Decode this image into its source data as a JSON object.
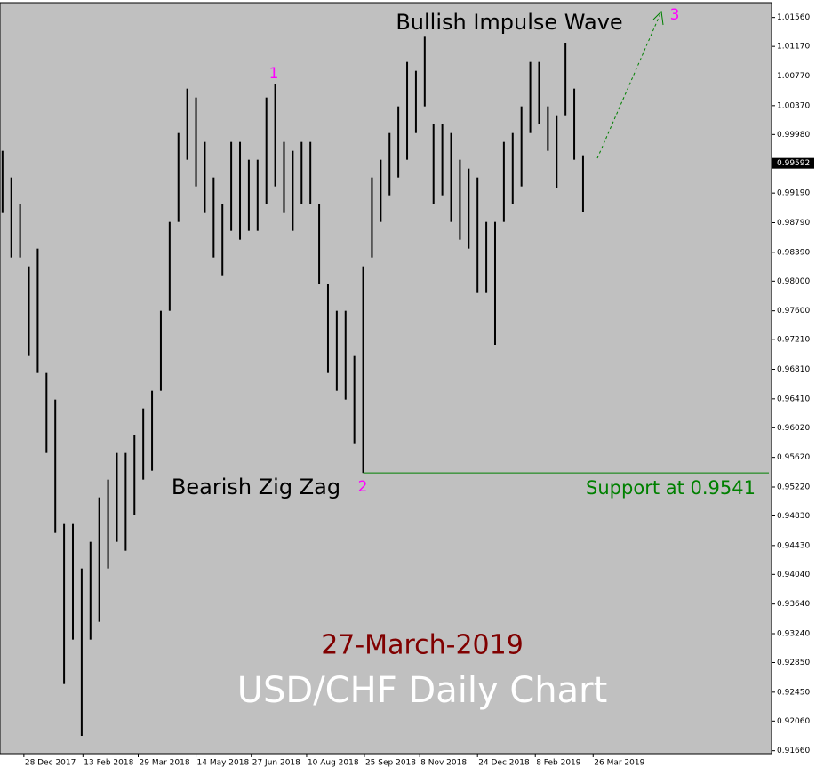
{
  "chart_data": {
    "type": "hilo",
    "title": "USD/CHF Daily Chart",
    "subtitle": "27-March-2019",
    "annotations": [
      "Bullish Impulse Wave",
      "Bearish Zig Zag"
    ],
    "wave_labels": [
      "1",
      "2",
      "3"
    ],
    "support": {
      "value": 0.9541,
      "label": "Support at 0.9541"
    },
    "last_price": 0.99592,
    "x": [
      "2017-12-11",
      "2017-12-18",
      "2017-12-25",
      "2018-01-01",
      "2018-01-08",
      "2018-01-15",
      "2018-01-22",
      "2018-01-29",
      "2018-02-05",
      "2018-02-12",
      "2018-02-19",
      "2018-02-26",
      "2018-03-05",
      "2018-03-12",
      "2018-03-19",
      "2018-03-26",
      "2018-04-02",
      "2018-04-09",
      "2018-04-16",
      "2018-04-23",
      "2018-04-30",
      "2018-05-07",
      "2018-05-14",
      "2018-05-21",
      "2018-05-28",
      "2018-06-04",
      "2018-06-11",
      "2018-06-18",
      "2018-06-25",
      "2018-07-02",
      "2018-07-09",
      "2018-07-16",
      "2018-07-23",
      "2018-07-30",
      "2018-08-06",
      "2018-08-13",
      "2018-08-20",
      "2018-08-27",
      "2018-09-03",
      "2018-09-10",
      "2018-09-17",
      "2018-09-24",
      "2018-10-01",
      "2018-10-08",
      "2018-10-15",
      "2018-10-22",
      "2018-10-29",
      "2018-11-05",
      "2018-11-12",
      "2018-11-19",
      "2018-11-26",
      "2018-12-03",
      "2018-12-10",
      "2018-12-17",
      "2018-12-24",
      "2018-12-31",
      "2019-01-07",
      "2019-01-14",
      "2019-01-21",
      "2019-01-28",
      "2019-02-04",
      "2019-02-11",
      "2019-02-18",
      "2019-02-25",
      "2019-03-04",
      "2019-03-11",
      "2019-03-18"
    ],
    "high": [
      0.9976,
      0.994,
      0.9904,
      0.982,
      0.9844,
      0.9676,
      0.964,
      0.9472,
      0.9472,
      0.9412,
      0.9448,
      0.9508,
      0.9532,
      0.9568,
      0.9568,
      0.9592,
      0.9628,
      0.9652,
      0.976,
      0.988,
      1.0,
      1.006,
      1.0048,
      0.9988,
      0.994,
      0.9904,
      0.9988,
      0.9988,
      0.9964,
      0.9964,
      1.0048,
      1.0066,
      0.9988,
      0.9976,
      0.9988,
      0.9988,
      0.9904,
      0.9796,
      0.976,
      0.976,
      0.97,
      0.982,
      0.994,
      0.9964,
      1.0,
      1.0036,
      1.0096,
      1.0084,
      1.013,
      1.0012,
      1.0012,
      1.0,
      0.9964,
      0.9952,
      0.994,
      0.988,
      0.988,
      0.9988,
      1.0,
      1.0036,
      1.0096,
      1.0096,
      1.0036,
      1.0024,
      1.0122,
      1.006,
      0.997
    ],
    "low": [
      0.9892,
      0.9832,
      0.9832,
      0.97,
      0.9676,
      0.9568,
      0.946,
      0.9256,
      0.9316,
      0.9186,
      0.9316,
      0.934,
      0.9412,
      0.9448,
      0.9436,
      0.9484,
      0.9532,
      0.9544,
      0.9652,
      0.976,
      0.988,
      0.9964,
      0.9928,
      0.9892,
      0.9832,
      0.9808,
      0.9868,
      0.9856,
      0.9868,
      0.9868,
      0.9904,
      0.9928,
      0.9892,
      0.9868,
      0.9904,
      0.9904,
      0.9796,
      0.9676,
      0.9652,
      0.964,
      0.958,
      0.9541,
      0.9832,
      0.988,
      0.9916,
      0.994,
      0.9964,
      1.0,
      1.0036,
      0.9904,
      0.9916,
      0.988,
      0.9856,
      0.9844,
      0.9784,
      0.9784,
      0.9714,
      0.988,
      0.9904,
      0.9928,
      1.0,
      1.0012,
      0.9976,
      0.9926,
      1.0024,
      0.9964,
      0.9894
    ],
    "color": "#000000",
    "xlim": [
      "2017-12-09",
      "2019-08-15"
    ],
    "xticks": [
      {
        "value": "2017-12-28",
        "label": "28 Dec 2017"
      },
      {
        "value": "2018-02-13",
        "label": "13 Feb 2018"
      },
      {
        "value": "2018-03-29",
        "label": "29 Mar 2018"
      },
      {
        "value": "2018-05-14",
        "label": "14 May 2018"
      },
      {
        "value": "2018-06-27",
        "label": "27 Jun 2018"
      },
      {
        "value": "2018-08-10",
        "label": "10 Aug 2018"
      },
      {
        "value": "2018-09-25",
        "label": "25 Sep 2018"
      },
      {
        "value": "2018-11-08",
        "label": "8 Nov 2018"
      },
      {
        "value": "2018-12-24",
        "label": "24 Dec 2018"
      },
      {
        "value": "2019-02-08",
        "label": "8 Feb 2019"
      },
      {
        "value": "2019-03-26",
        "label": "26 Mar 2019"
      }
    ],
    "ylim": [
      0.9162,
      1.0176
    ],
    "yticks": [
      {
        "value": 1.0156,
        "label": "1.01560"
      },
      {
        "value": 1.0117,
        "label": "1.01170"
      },
      {
        "value": 1.0077,
        "label": "1.00770"
      },
      {
        "value": 1.0037,
        "label": "1.00370"
      },
      {
        "value": 0.9998,
        "label": "0.99980"
      },
      {
        "value": 0.9919,
        "label": "0.99190"
      },
      {
        "value": 0.9879,
        "label": "0.98790"
      },
      {
        "value": 0.9839,
        "label": "0.98390"
      },
      {
        "value": 0.98,
        "label": "0.98000"
      },
      {
        "value": 0.976,
        "label": "0.97600"
      },
      {
        "value": 0.9721,
        "label": "0.97210"
      },
      {
        "value": 0.9681,
        "label": "0.96810"
      },
      {
        "value": 0.9641,
        "label": "0.96410"
      },
      {
        "value": 0.9602,
        "label": "0.96020"
      },
      {
        "value": 0.9562,
        "label": "0.95620"
      },
      {
        "value": 0.9522,
        "label": "0.95220"
      },
      {
        "value": 0.9483,
        "label": "0.94830"
      },
      {
        "value": 0.9443,
        "label": "0.94430"
      },
      {
        "value": 0.9404,
        "label": "0.94040"
      },
      {
        "value": 0.9364,
        "label": "0.93640"
      },
      {
        "value": 0.9324,
        "label": "0.93240"
      },
      {
        "value": 0.9285,
        "label": "0.92850"
      },
      {
        "value": 0.9245,
        "label": "0.92450"
      },
      {
        "value": 0.9206,
        "label": "0.92060"
      },
      {
        "value": 0.9166,
        "label": "0.91660"
      }
    ],
    "grid": false
  }
}
